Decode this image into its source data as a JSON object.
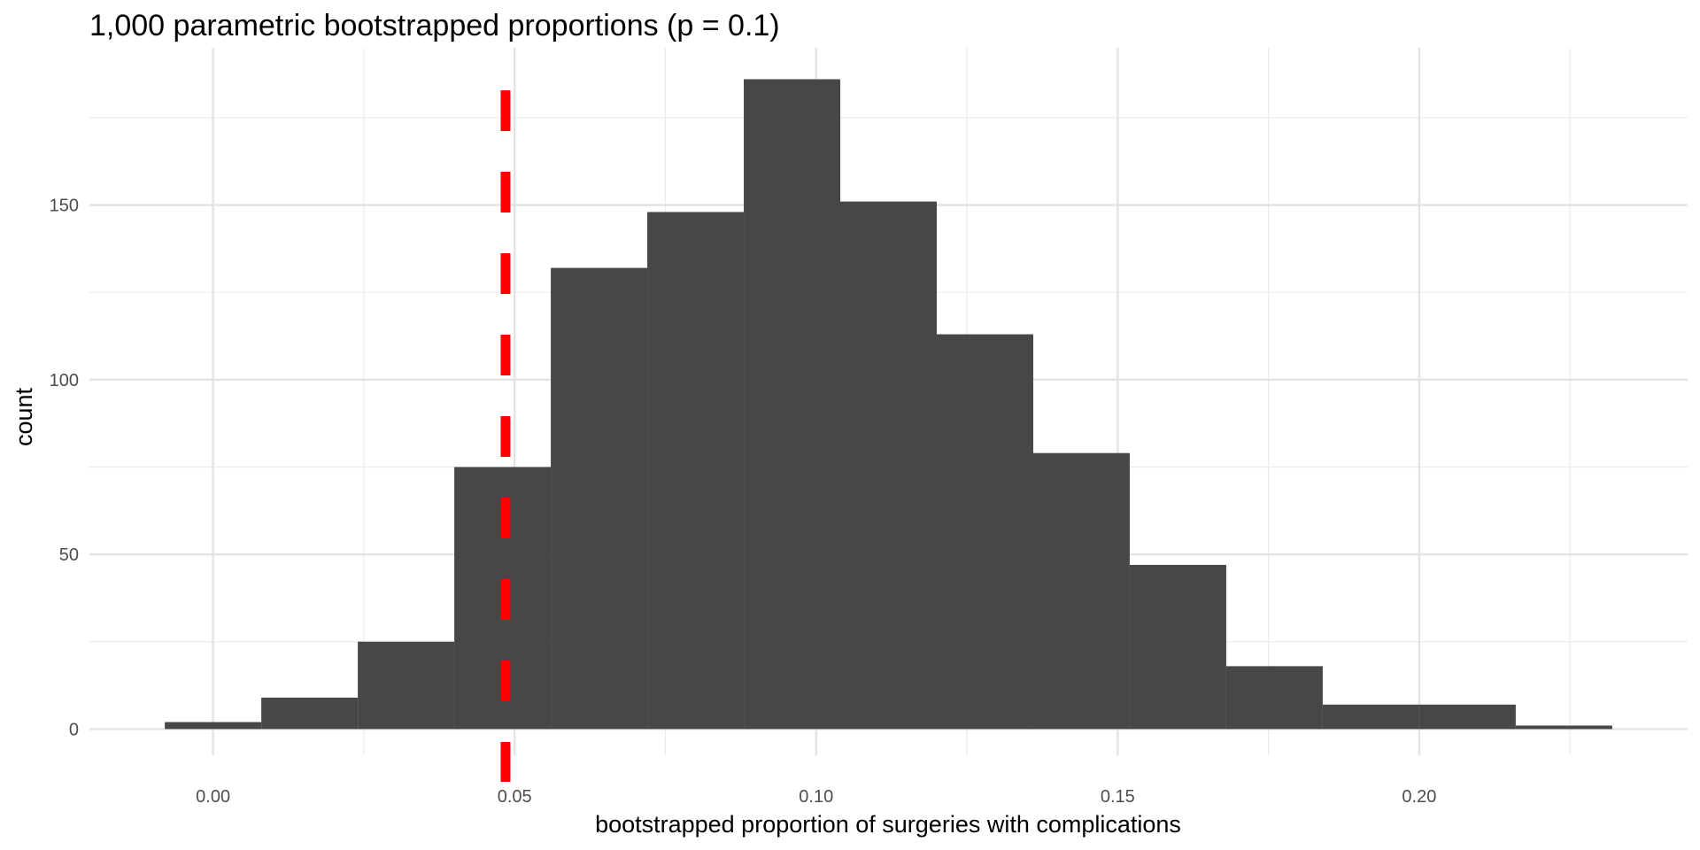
{
  "chart_data": {
    "type": "bar",
    "title": "1,000 parametric bootstrapped proportions (p = 0.1)",
    "xlabel": "bootstrapped proportion of surgeries with complications",
    "ylabel": "count",
    "bins": [
      {
        "x0": -0.008,
        "x1": 0.008,
        "count": 2
      },
      {
        "x0": 0.008,
        "x1": 0.024,
        "count": 9
      },
      {
        "x0": 0.024,
        "x1": 0.04,
        "count": 25
      },
      {
        "x0": 0.04,
        "x1": 0.056,
        "count": 75
      },
      {
        "x0": 0.056,
        "x1": 0.072,
        "count": 132
      },
      {
        "x0": 0.072,
        "x1": 0.088,
        "count": 148
      },
      {
        "x0": 0.088,
        "x1": 0.104,
        "count": 186
      },
      {
        "x0": 0.104,
        "x1": 0.12,
        "count": 151
      },
      {
        "x0": 0.12,
        "x1": 0.136,
        "count": 113
      },
      {
        "x0": 0.136,
        "x1": 0.152,
        "count": 79
      },
      {
        "x0": 0.152,
        "x1": 0.168,
        "count": 47
      },
      {
        "x0": 0.168,
        "x1": 0.184,
        "count": 18
      },
      {
        "x0": 0.184,
        "x1": 0.2,
        "count": 7
      },
      {
        "x0": 0.2,
        "x1": 0.216,
        "count": 7
      },
      {
        "x0": 0.216,
        "x1": 0.232,
        "count": 1
      }
    ],
    "vline": {
      "x": 0.0485,
      "color": "#ff0000",
      "style": "dashed"
    },
    "bar_color": "#474747",
    "grid": true,
    "xlim": [
      -0.0205,
      0.2445
    ],
    "ylim": [
      -7.5,
      195
    ],
    "xticks": [
      {
        "value": 0.0,
        "label": "0.00"
      },
      {
        "value": 0.05,
        "label": "0.05"
      },
      {
        "value": 0.1,
        "label": "0.10"
      },
      {
        "value": 0.15,
        "label": "0.15"
      },
      {
        "value": 0.2,
        "label": "0.20"
      }
    ],
    "xminor": [
      0.025,
      0.075,
      0.125,
      0.175,
      0.225
    ],
    "yticks": [
      {
        "value": 0,
        "label": "0"
      },
      {
        "value": 50,
        "label": "50"
      },
      {
        "value": 100,
        "label": "100"
      },
      {
        "value": 150,
        "label": "150"
      }
    ],
    "yminor": [
      25,
      75,
      125,
      175
    ]
  }
}
